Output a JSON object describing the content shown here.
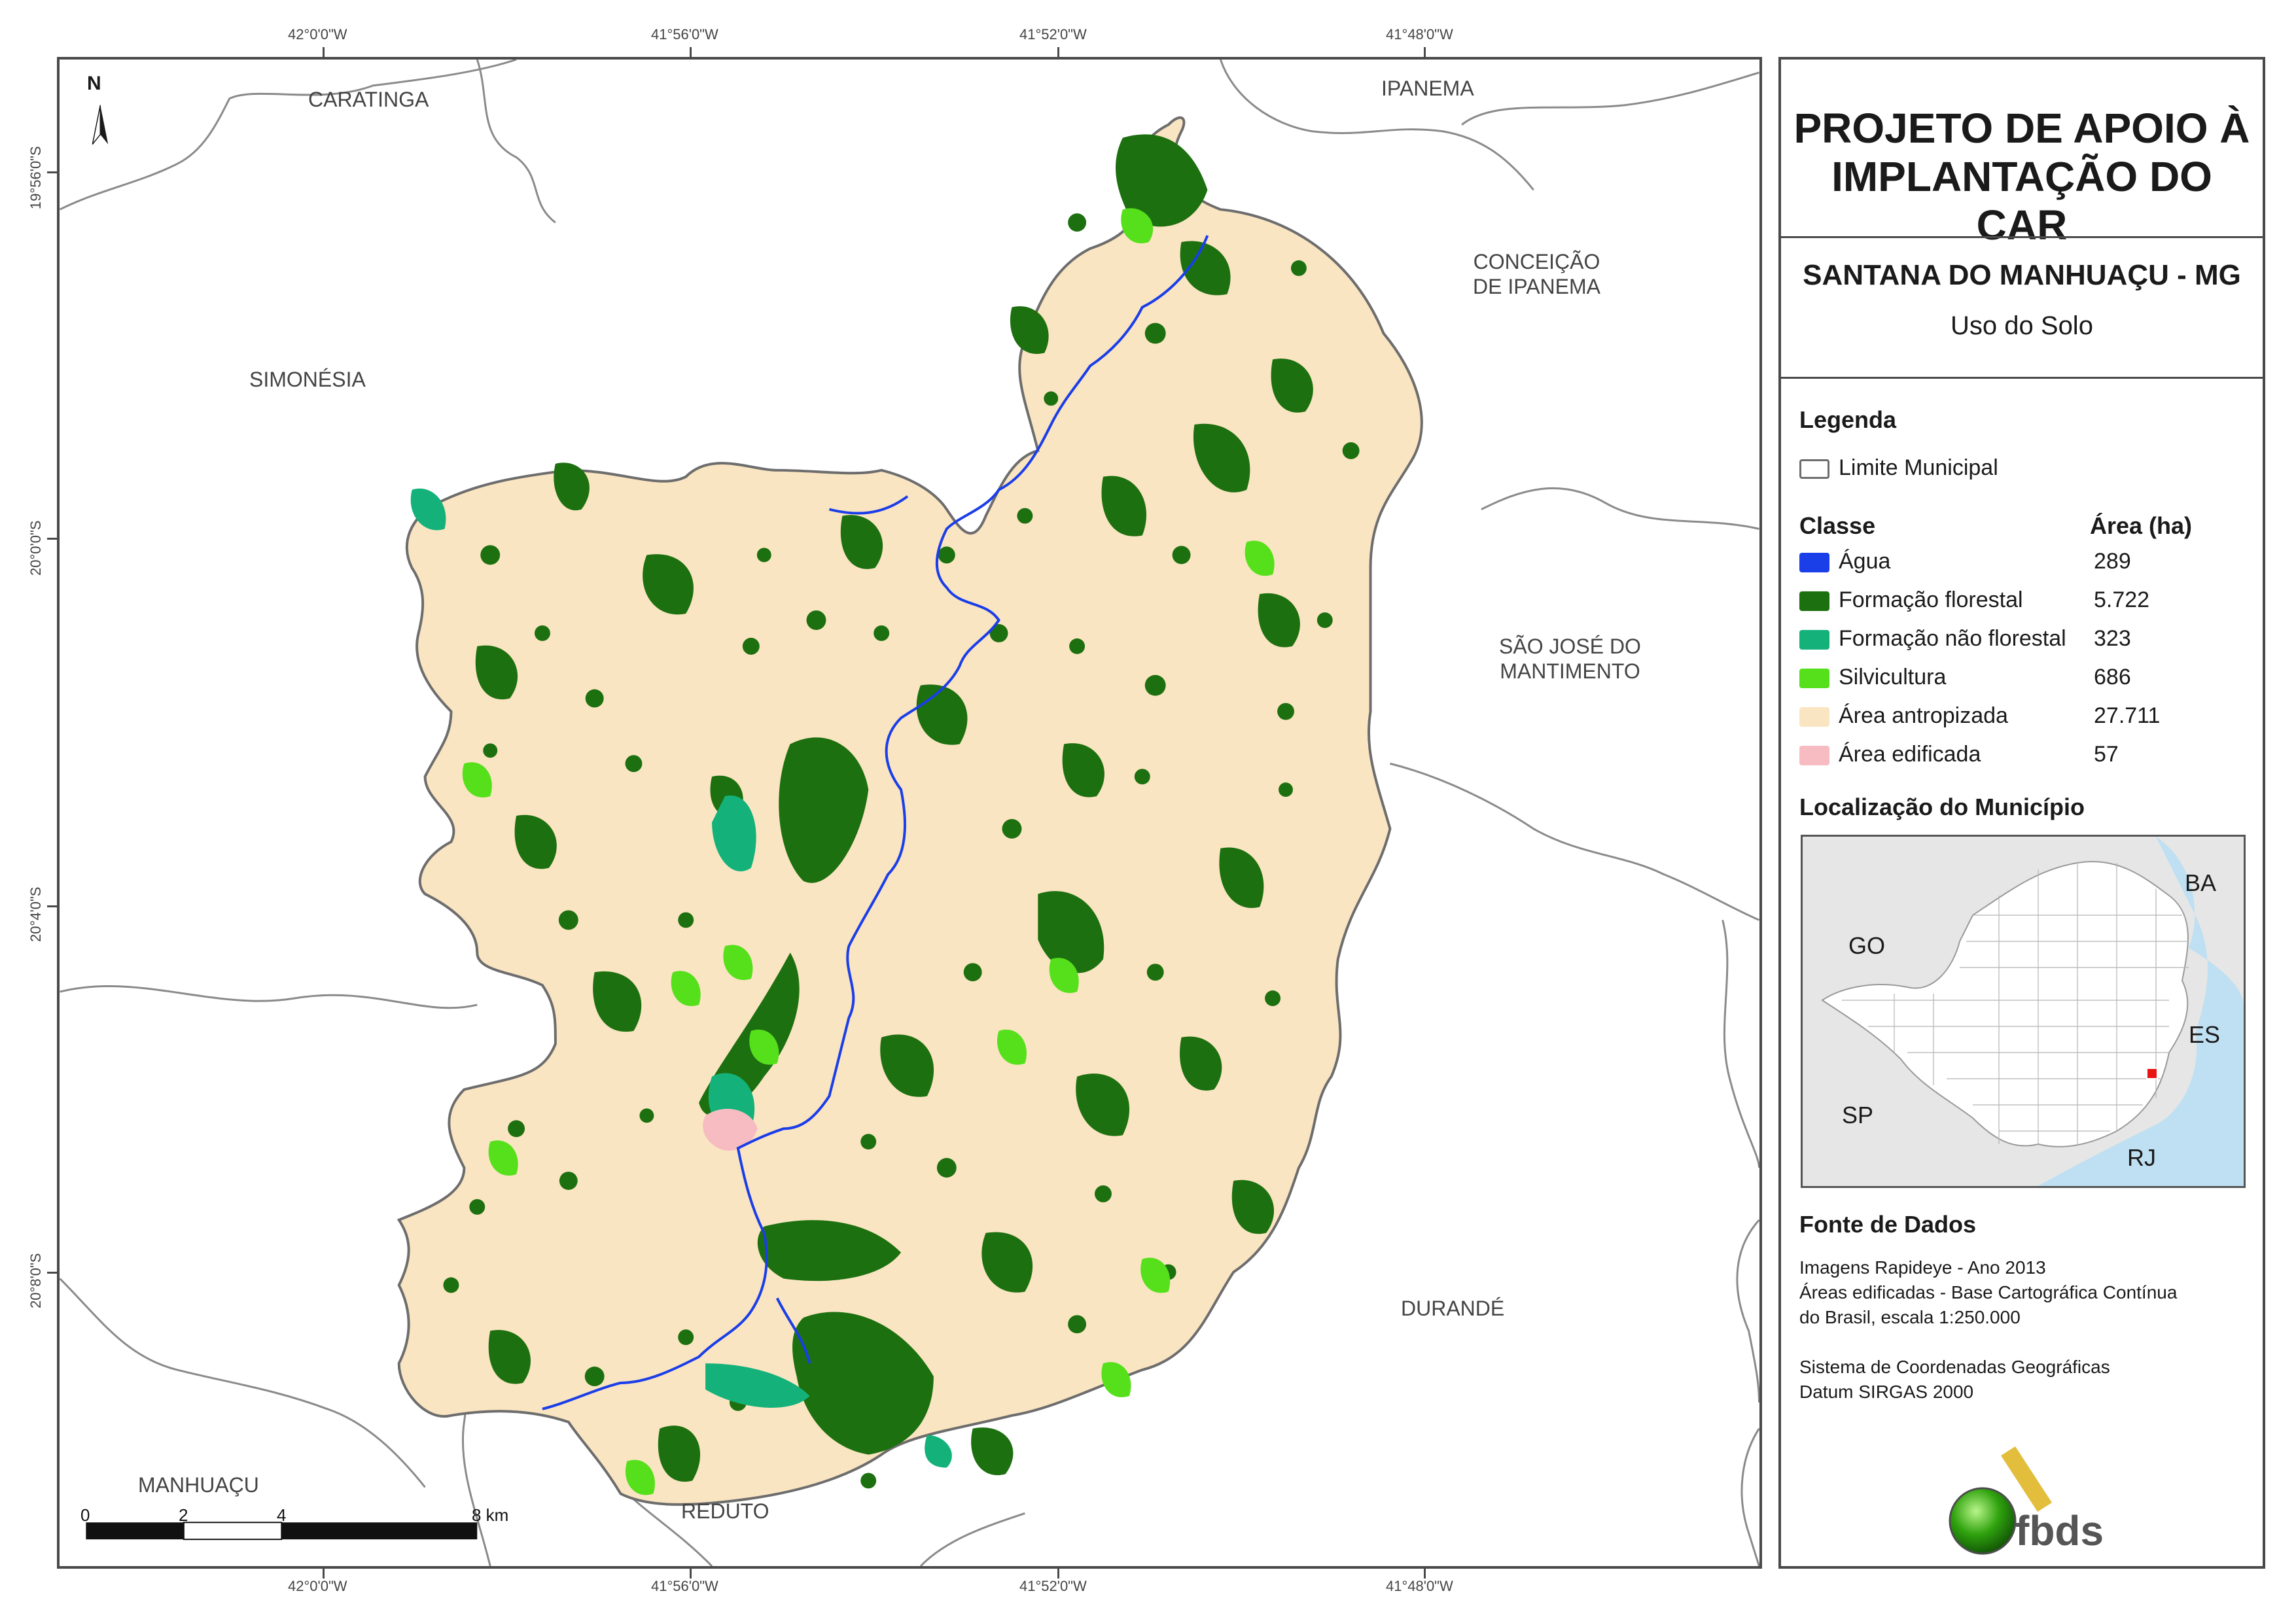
{
  "map": {
    "coords_top": [
      "42°0'0\"W",
      "41°56'0\"W",
      "41°52'0\"W",
      "41°48'0\"W"
    ],
    "coords_bottom": [
      "42°0'0\"W",
      "41°56'0\"W",
      "41°52'0\"W",
      "41°48'0\"W"
    ],
    "coords_left": [
      "19°56'0\"S",
      "20°0'0\"S",
      "20°4'0\"S",
      "20°8'0\"S"
    ],
    "north_label": "N",
    "neighbors": {
      "caratinga": "CARATINGA",
      "ipanema": "IPANEMA",
      "conceicao": "CONCEIÇÃO\nDE IPANEMA",
      "simonesia": "SIMONÉSIA",
      "sao_jose": "SÃO JOSÉ DO\nMANTIMENTO",
      "durande": "DURANDÉ",
      "manhuacu": "MANHUAÇU",
      "reduto": "REDUTO"
    },
    "scalebar": {
      "labels": [
        "0",
        "2",
        "4",
        "8 km"
      ]
    },
    "colors": {
      "antropizada": "#fae5c2",
      "florestal": "#1d7010",
      "nao_florestal": "#14b27a",
      "silvicultura": "#56e01c",
      "agua": "#1a3ee8",
      "edificada": "#f7bcc2",
      "boundary": "#8a8a8a"
    }
  },
  "panel": {
    "title": "PROJETO DE APOIO À\nIMPLANTAÇÃO DO CAR",
    "municipality": "SANTANA DO MANHUAÇU - MG",
    "theme": "Uso do Solo",
    "legend_heading": "Legenda",
    "boundary_label": "Limite Municipal",
    "class_heading": "Classe",
    "area_heading": "Área (ha)",
    "classes": [
      {
        "label": "Água",
        "area": "289",
        "color": "#1a3ee8"
      },
      {
        "label": "Formação florestal",
        "area": "5.722",
        "color": "#1d7010"
      },
      {
        "label": "Formação não florestal",
        "area": "323",
        "color": "#14b27a"
      },
      {
        "label": "Silvicultura",
        "area": "686",
        "color": "#56e01c"
      },
      {
        "label": "Área antropizada",
        "area": "27.711",
        "color": "#fae5c2"
      },
      {
        "label": "Área edificada",
        "area": "57",
        "color": "#f7bcc2"
      }
    ],
    "location_heading": "Localização do Município",
    "inset_labels": {
      "ba": "BA",
      "go": "GO",
      "es": "ES",
      "sp": "SP",
      "rj": "RJ"
    },
    "sources_heading": "Fonte de Dados",
    "sources": [
      "Imagens Rapideye - Ano 2013",
      "Áreas edificadas - Base Cartográfica Contínua",
      "do Brasil, escala 1:250.000",
      "",
      "Sistema de Coordenadas Geográficas",
      "Datum SIRGAS 2000"
    ],
    "logo_text": "fbds"
  }
}
